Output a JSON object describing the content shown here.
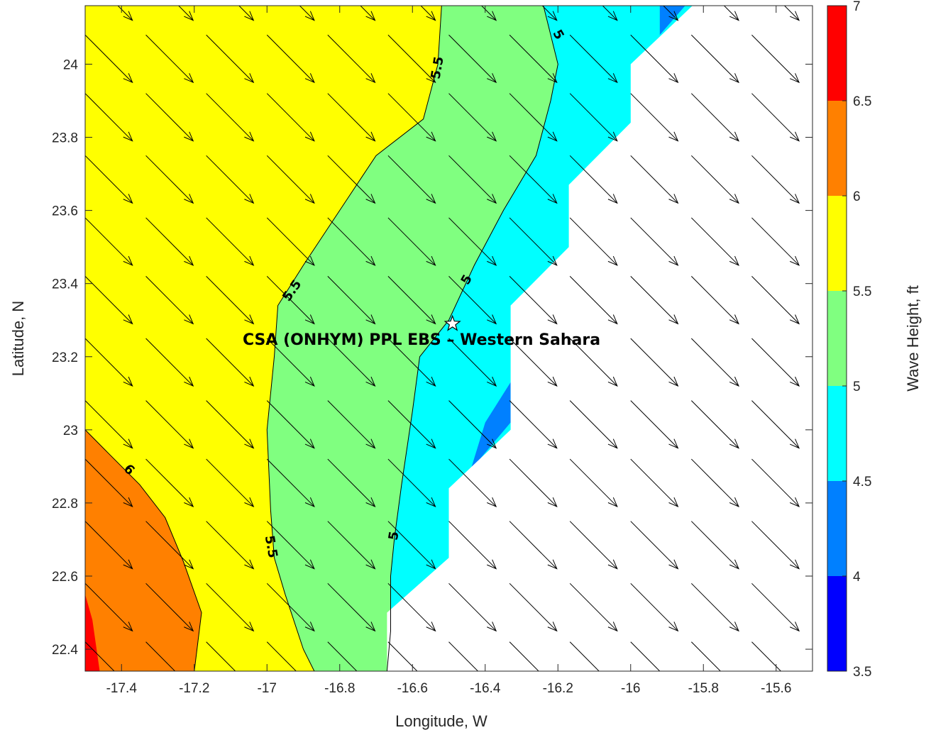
{
  "chart_data": {
    "type": "contour",
    "title": "",
    "annotation": "CSA (ONHYM) PPL EBS  – Western Sahara",
    "xlabel": "Longitude, W",
    "ylabel": "Latitude, N",
    "colorbar_label": "Wave Height, ft",
    "xlim": [
      -17.5,
      -15.5
    ],
    "ylim": [
      22.34,
      24.16
    ],
    "x_ticks": [
      -17.4,
      -17.2,
      -17.0,
      -16.8,
      -16.6,
      -16.4,
      -16.2,
      -16.0,
      -15.8,
      -15.6
    ],
    "x_tick_labels": [
      "-17.4",
      "-17.2",
      "-17",
      "-16.8",
      "-16.6",
      "-16.4",
      "-16.2",
      "-16",
      "-15.8",
      "-15.6"
    ],
    "y_ticks": [
      22.4,
      22.6,
      22.8,
      23.0,
      23.2,
      23.4,
      23.6,
      23.8,
      24.0
    ],
    "y_tick_labels": [
      "22.4",
      "22.6",
      "22.8",
      "23",
      "23.2",
      "23.4",
      "23.6",
      "23.8",
      "24"
    ],
    "colorbar": {
      "levels": [
        3.5,
        4,
        4.5,
        5,
        5.5,
        6,
        6.5,
        7
      ],
      "tick_labels": [
        "3.5",
        "4",
        "4.5",
        "5",
        "5.5",
        "6",
        "6.5",
        "7"
      ],
      "colors": [
        "#0000ff",
        "#0080ff",
        "#00ffff",
        "#80ff80",
        "#ffff00",
        "#ff8000",
        "#ff0000"
      ]
    },
    "land_color": "#ffffff",
    "regions": [
      {
        "level": "5.5-6",
        "color": "#ffff00",
        "poly": [
          [
            -17.5,
            22.34
          ],
          [
            -15.5,
            22.34
          ],
          [
            -15.5,
            24.16
          ],
          [
            -17.5,
            24.16
          ]
        ]
      },
      {
        "level": "6-6.5",
        "color": "#ff8000",
        "poly": [
          [
            -17.5,
            23.0
          ],
          [
            -17.44,
            22.94
          ],
          [
            -17.35,
            22.85
          ],
          [
            -17.28,
            22.76
          ],
          [
            -17.23,
            22.64
          ],
          [
            -17.18,
            22.5
          ],
          [
            -17.2,
            22.34
          ],
          [
            -17.5,
            22.34
          ]
        ]
      },
      {
        "level": "6.5-7",
        "color": "#ff0000",
        "poly": [
          [
            -17.5,
            22.55
          ],
          [
            -17.48,
            22.48
          ],
          [
            -17.46,
            22.34
          ],
          [
            -17.5,
            22.34
          ]
        ]
      },
      {
        "level": "5-5.5",
        "color": "#80ff80",
        "poly": [
          [
            -16.87,
            22.34
          ],
          [
            -16.9,
            22.4
          ],
          [
            -16.95,
            22.55
          ],
          [
            -16.98,
            22.65
          ],
          [
            -16.99,
            22.78
          ],
          [
            -17.0,
            23.0
          ],
          [
            -16.98,
            23.2
          ],
          [
            -16.97,
            23.34
          ],
          [
            -16.9,
            23.45
          ],
          [
            -16.8,
            23.6
          ],
          [
            -16.7,
            23.75
          ],
          [
            -16.57,
            23.85
          ],
          [
            -16.53,
            24.0
          ],
          [
            -16.52,
            24.16
          ],
          [
            -15.5,
            24.16
          ],
          [
            -15.5,
            22.34
          ]
        ]
      },
      {
        "level": "4.5-5",
        "color": "#00ffff",
        "poly": [
          [
            -16.67,
            22.34
          ],
          [
            -16.66,
            22.45
          ],
          [
            -16.66,
            22.6
          ],
          [
            -16.65,
            22.7
          ],
          [
            -16.63,
            22.85
          ],
          [
            -16.6,
            23.05
          ],
          [
            -16.58,
            23.2
          ],
          [
            -16.5,
            23.3
          ],
          [
            -16.43,
            23.45
          ],
          [
            -16.35,
            23.6
          ],
          [
            -16.26,
            23.75
          ],
          [
            -16.22,
            23.9
          ],
          [
            -16.2,
            24.0
          ],
          [
            -16.24,
            24.16
          ],
          [
            -15.5,
            24.16
          ],
          [
            -15.5,
            22.34
          ]
        ]
      },
      {
        "level": "4-4.5",
        "color": "#0080ff",
        "poly": [
          [
            -16.33,
            23.02
          ],
          [
            -16.33,
            23.13
          ],
          [
            -16.4,
            23.02
          ],
          [
            -16.44,
            22.89
          ]
        ]
      },
      {
        "level": "4-4.5",
        "color": "#0080ff",
        "poly": [
          [
            -15.92,
            24.08
          ],
          [
            -15.92,
            24.16
          ],
          [
            -15.85,
            24.16
          ]
        ]
      }
    ],
    "land": [
      [
        -16.67,
        22.34
      ],
      [
        -16.67,
        22.5
      ],
      [
        -16.5,
        22.65
      ],
      [
        -16.5,
        22.84
      ],
      [
        -16.33,
        23.0
      ],
      [
        -16.33,
        23.34
      ],
      [
        -16.17,
        23.5
      ],
      [
        -16.17,
        23.67
      ],
      [
        -16.0,
        23.84
      ],
      [
        -16.0,
        24.0
      ],
      [
        -15.83,
        24.16
      ],
      [
        -15.5,
        24.16
      ],
      [
        -15.5,
        22.34
      ]
    ],
    "contours": [
      {
        "level": 5.5,
        "points": [
          [
            -16.87,
            22.34
          ],
          [
            -16.9,
            22.4
          ],
          [
            -16.95,
            22.55
          ],
          [
            -16.98,
            22.65
          ],
          [
            -16.99,
            22.78
          ],
          [
            -17.0,
            23.0
          ],
          [
            -16.98,
            23.2
          ],
          [
            -16.97,
            23.34
          ],
          [
            -16.9,
            23.45
          ],
          [
            -16.8,
            23.6
          ],
          [
            -16.7,
            23.75
          ],
          [
            -16.57,
            23.85
          ],
          [
            -16.53,
            24.0
          ],
          [
            -16.52,
            24.16
          ]
        ]
      },
      {
        "level": 5,
        "points": [
          [
            -16.67,
            22.34
          ],
          [
            -16.66,
            22.45
          ],
          [
            -16.66,
            22.6
          ],
          [
            -16.65,
            22.7
          ],
          [
            -16.63,
            22.85
          ],
          [
            -16.6,
            23.05
          ],
          [
            -16.58,
            23.2
          ],
          [
            -16.5,
            23.3
          ],
          [
            -16.43,
            23.45
          ],
          [
            -16.35,
            23.6
          ],
          [
            -16.26,
            23.75
          ],
          [
            -16.22,
            23.9
          ],
          [
            -16.2,
            24.0
          ],
          [
            -16.24,
            24.16
          ]
        ]
      },
      {
        "level": 6,
        "points": [
          [
            -17.5,
            23.0
          ],
          [
            -17.44,
            22.94
          ],
          [
            -17.35,
            22.85
          ],
          [
            -17.28,
            22.76
          ],
          [
            -17.23,
            22.64
          ],
          [
            -17.18,
            22.5
          ],
          [
            -17.2,
            22.34
          ]
        ]
      }
    ],
    "contour_labels": [
      {
        "text": "5.5",
        "x": -16.53,
        "y": 23.99,
        "angle": -80
      },
      {
        "text": "5.5",
        "x": -16.93,
        "y": 23.38,
        "angle": -55
      },
      {
        "text": "5.5",
        "x": -16.99,
        "y": 22.68,
        "angle": 80
      },
      {
        "text": "5",
        "x": -16.2,
        "y": 24.08,
        "angle": 60
      },
      {
        "text": "5",
        "x": -16.45,
        "y": 23.41,
        "angle": -60
      },
      {
        "text": "5",
        "x": -16.65,
        "y": 22.71,
        "angle": -80
      },
      {
        "text": "6",
        "x": -17.38,
        "y": 22.89,
        "angle": 45
      }
    ],
    "site_marker": {
      "x": -16.49,
      "y": 23.29,
      "symbol": "star"
    },
    "vector_field": {
      "x": [
        -17.5,
        -17.333,
        -17.167,
        -17.0,
        -16.833,
        -16.667,
        -16.5,
        -16.333,
        -16.167,
        -16.0,
        -15.833,
        -15.667,
        -15.5
      ],
      "y": [
        24.25,
        24.08,
        23.92,
        23.75,
        23.58,
        23.42,
        23.25,
        23.08,
        22.92,
        22.75,
        22.58,
        22.42
      ],
      "dx": 0.13,
      "dy": -0.13,
      "omit_over_land_before_lat": 0
    }
  }
}
